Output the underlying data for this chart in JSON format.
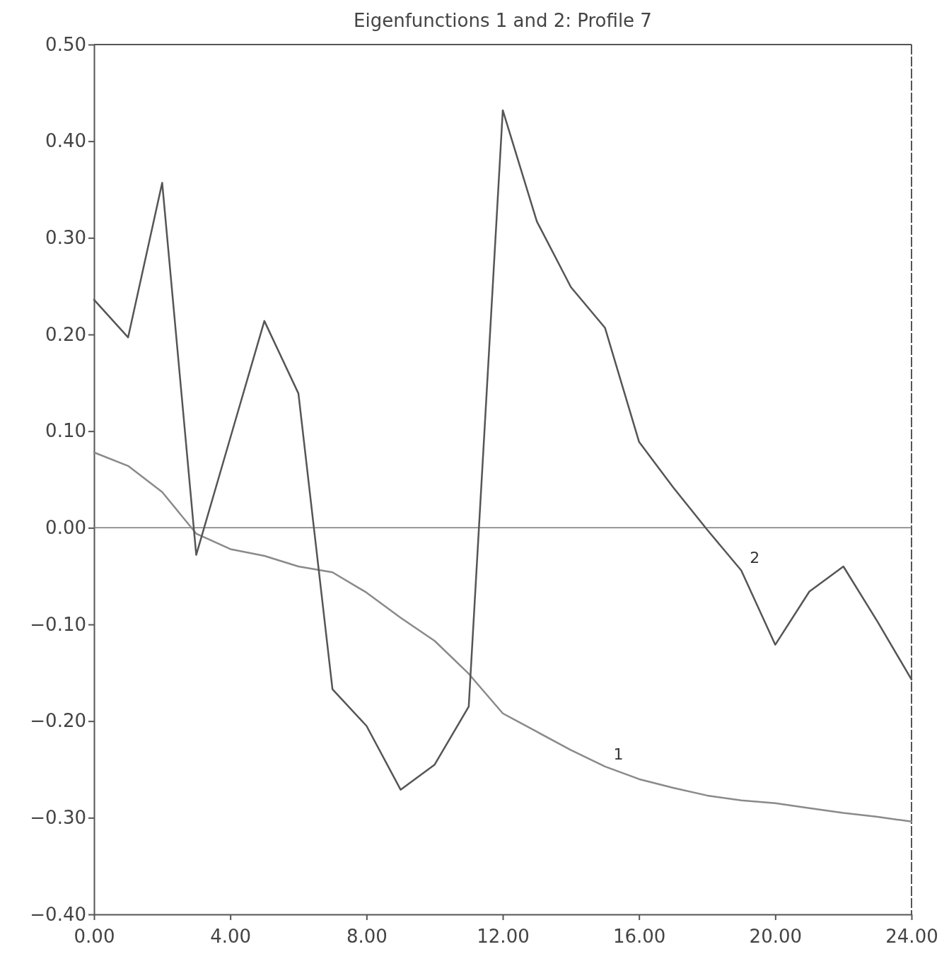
{
  "chart_data": {
    "type": "line",
    "title": "Eigenfunctions 1 and 2:  Profile 7",
    "x": [
      0,
      1,
      2,
      3,
      4,
      5,
      6,
      7,
      8,
      9,
      10,
      11,
      12,
      13,
      14,
      15,
      16,
      17,
      18,
      19,
      20,
      21,
      22,
      23,
      24
    ],
    "series": [
      {
        "name": "1",
        "color": "#8a8a8a",
        "values": [
          0.078,
          0.064,
          0.037,
          -0.006,
          -0.022,
          -0.029,
          -0.04,
          -0.046,
          -0.067,
          -0.093,
          -0.117,
          -0.151,
          -0.192,
          -0.211,
          -0.23,
          -0.247,
          -0.26,
          -0.269,
          -0.277,
          -0.282,
          -0.285,
          -0.29,
          -0.295,
          -0.299,
          -0.304
        ]
      },
      {
        "name": "2",
        "color": "#555555",
        "values": [
          0.236,
          0.197,
          0.357,
          -0.028,
          0.093,
          0.214,
          0.139,
          -0.167,
          -0.205,
          -0.271,
          -0.245,
          -0.185,
          0.432,
          0.317,
          0.249,
          0.207,
          0.089,
          0.042,
          -0.002,
          -0.044,
          -0.121,
          -0.066,
          -0.04,
          -0.097,
          -0.157
        ]
      }
    ],
    "xlim": [
      0,
      24
    ],
    "xticks": [
      {
        "value": 0,
        "label": "0.00"
      },
      {
        "value": 4,
        "label": "4.00"
      },
      {
        "value": 8,
        "label": "8.00"
      },
      {
        "value": 12,
        "label": "12.00"
      },
      {
        "value": 16,
        "label": "16.00"
      },
      {
        "value": 20,
        "label": "20.00"
      },
      {
        "value": 24,
        "label": "24.00"
      }
    ],
    "ylim": [
      -0.4,
      0.5
    ],
    "yticks": [
      {
        "value": -0.4,
        "label": "−0.40"
      },
      {
        "value": -0.3,
        "label": "−0.30"
      },
      {
        "value": -0.2,
        "label": "−0.20"
      },
      {
        "value": -0.1,
        "label": "−0.10"
      },
      {
        "value": 0,
        "label": "0.00"
      },
      {
        "value": 0.1,
        "label": "0.10"
      },
      {
        "value": 0.2,
        "label": "0.20"
      },
      {
        "value": 0.3,
        "label": "0.30"
      },
      {
        "value": 0.4,
        "label": "0.40"
      },
      {
        "value": 0.5,
        "label": "0.50"
      }
    ],
    "ref_lines": [
      {
        "axis": "y",
        "value": 0,
        "color": "#777777"
      }
    ],
    "grid": false,
    "legend": false,
    "marker": "none",
    "line_style": "solid"
  }
}
